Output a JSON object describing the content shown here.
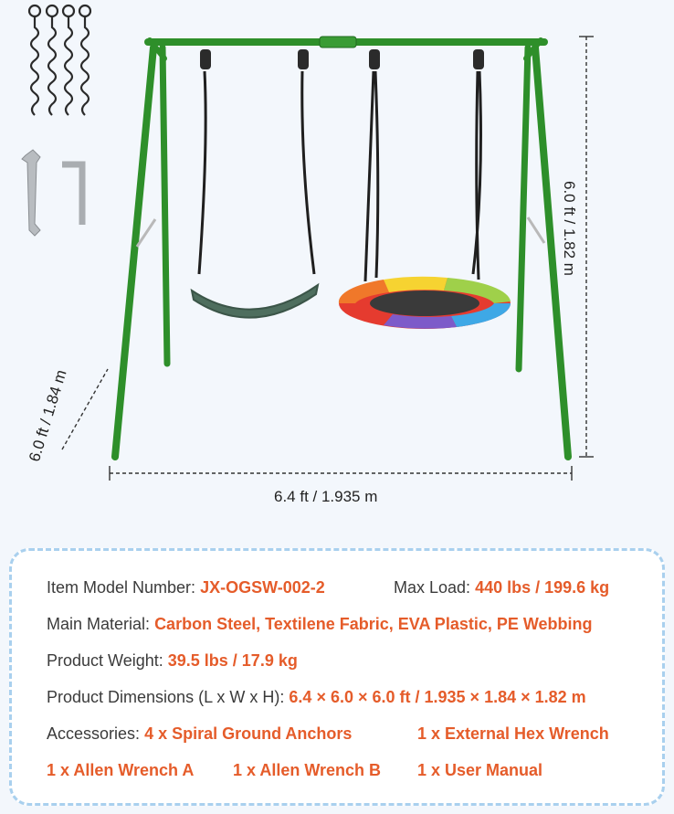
{
  "dimensions": {
    "width": "6.4 ft / 1.935 m",
    "height": "6.0 ft / 1.82 m",
    "depth": "6.0 ft / 1.84 m"
  },
  "colors": {
    "frame": "#2e8f2a",
    "highlight": "#e55c2a",
    "card_border": "#a9d0ee",
    "seat": "#4e6e5e"
  },
  "accessories_pictured": [
    "spiral-ground-anchor-icon",
    "wrench-icon",
    "allen-wrench-icon"
  ],
  "specs": {
    "model_label": "Item Model Number:",
    "model_value": "JX-OGSW-002-2",
    "load_label": "Max Load:",
    "load_value": "440 lbs / 199.6 kg",
    "material_label": "Main Material:",
    "material_value": "Carbon Steel, Textilene Fabric, EVA Plastic, PE Webbing",
    "weight_label": "Product Weight:",
    "weight_value": "39.5 lbs / 17.9 kg",
    "dimensions_label": "Product Dimensions (L x W x H):",
    "dimensions_value": "6.4 × 6.0 × 6.0 ft / 1.935 × 1.84 × 1.82 m",
    "accessories_label": "Accessories:",
    "accessories": [
      "4 x Spiral Ground Anchors",
      "1 x External Hex Wrench",
      "1 x Allen Wrench A",
      "1 x Allen Wrench B",
      "1 x User Manual"
    ]
  }
}
